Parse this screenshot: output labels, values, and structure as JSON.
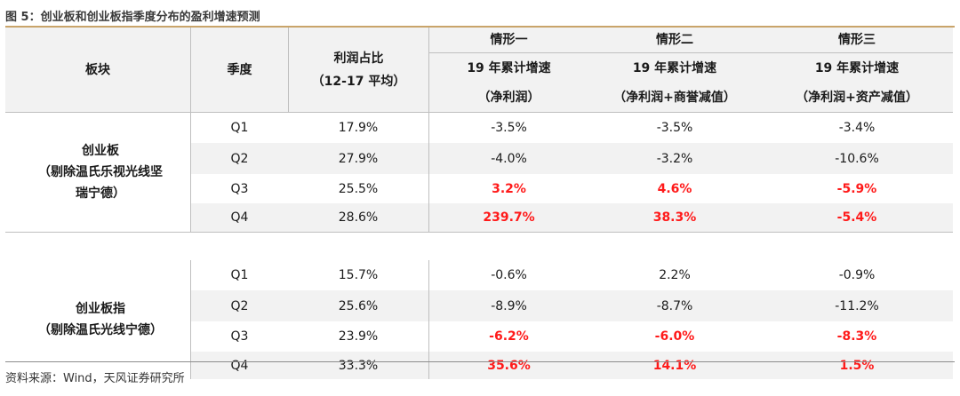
{
  "figure_title": "图 5：创业板和创业板指季度分布的盈利增速预测",
  "header": {
    "segment": "板块",
    "quarter": "季度",
    "profit_share_line1": "利润占比",
    "profit_share_line2": "（12-17 平均）",
    "scenarios": [
      {
        "name": "情形一",
        "line1": "19 年累计增速",
        "line2": "（净利润）"
      },
      {
        "name": "情形二",
        "line1": "19 年累计增速",
        "line2": "（净利润+商誉减值）"
      },
      {
        "name": "情形三",
        "line1": "19 年累计增速",
        "line2": "（净利润+资产减值）"
      }
    ]
  },
  "groups": [
    {
      "name_lines": [
        "创业板",
        "（剔除温氏乐视光线坚",
        "瑞宁德）"
      ],
      "rows": [
        {
          "quarter": "Q1",
          "share": "17.9%",
          "s1": "-3.5%",
          "s2": "-3.5%",
          "s3": "-3.4%"
        },
        {
          "quarter": "Q2",
          "share": "27.9%",
          "s1": "-4.0%",
          "s2": "-3.2%",
          "s3": "-10.6%"
        },
        {
          "quarter": "Q3",
          "share": "25.5%",
          "s1": "3.2%",
          "s2": "4.6%",
          "s3": "-5.9%"
        },
        {
          "quarter": "Q4",
          "share": "28.6%",
          "s1": "239.7%",
          "s2": "38.3%",
          "s3": "-5.4%"
        }
      ]
    },
    {
      "name_lines": [
        "创业板指",
        "（剔除温氏光线宁德）"
      ],
      "rows": [
        {
          "quarter": "Q1",
          "share": "15.7%",
          "s1": "-0.6%",
          "s2": "2.2%",
          "s3": "-0.9%"
        },
        {
          "quarter": "Q2",
          "share": "25.6%",
          "s1": "-8.9%",
          "s2": "-8.7%",
          "s3": "-11.2%"
        },
        {
          "quarter": "Q3",
          "share": "23.9%",
          "s1": "-6.2%",
          "s2": "-6.0%",
          "s3": "-8.3%"
        },
        {
          "quarter": "Q4",
          "share": "33.3%",
          "s1": "35.6%",
          "s2": "14.1%",
          "s3": "1.5%"
        }
      ]
    }
  ],
  "highlight_color": "#ff1a1a",
  "source": "资料来源：Wind，天风证券研究所"
}
